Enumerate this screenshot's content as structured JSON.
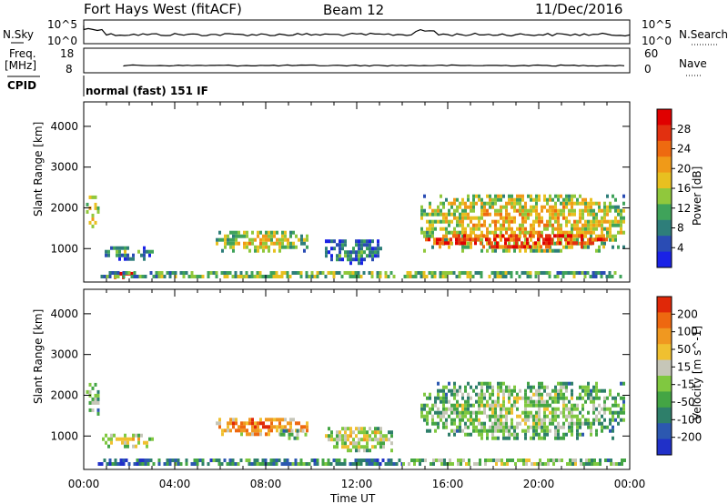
{
  "header": {
    "station": "Fort Hays West (fitACF)",
    "beam": "Beam 12",
    "date": "11/Dec/2016"
  },
  "top_panels": {
    "nsky_label": "N.Sky",
    "nsearch_label": "N.Search",
    "noise_ticks": [
      "10^5",
      "10^0"
    ],
    "freq_label_line1": "Freq.",
    "freq_label_line2": "[MHz]",
    "freq_ticks": [
      "18",
      "8"
    ],
    "nave_label": "Nave",
    "nave_ticks": [
      "60",
      "0"
    ],
    "cpid_label": "CPID",
    "cpid_text": "normal (fast) 151 IF"
  },
  "colors": {
    "power_scale": [
      "#1a22e6",
      "#2a4cb4",
      "#2e7e7a",
      "#3fa35a",
      "#90c83c",
      "#e8c020",
      "#f09a18",
      "#ee6a10",
      "#e23010",
      "#e00000"
    ],
    "velocity_scale": [
      "#2030c8",
      "#2c58b0",
      "#2e7f6a",
      "#44a544",
      "#80c840",
      "#c6c6b8",
      "#f0c030",
      "#f09820",
      "#ee6810",
      "#e02808"
    ]
  },
  "chart_data": [
    {
      "type": "heatmap",
      "name": "power-panel",
      "ylabel": "Slant Range [km]",
      "y_ticks": [
        "4000",
        "3000",
        "2000",
        "1000"
      ],
      "ylim": [
        180,
        4600
      ],
      "x_ticks": [
        "00:00",
        "04:00",
        "08:00",
        "12:00",
        "16:00",
        "20:00",
        "00:00"
      ],
      "xlim_hours": [
        0,
        24
      ],
      "colorbar_label": "Power [dB]",
      "colorbar_ticks": [
        "28",
        "24",
        "20",
        "16",
        "12",
        "8",
        "4"
      ],
      "colorbar_range": [
        0,
        30
      ],
      "regions": [
        {
          "t": [
            0.1,
            0.6
          ],
          "r": [
            1500,
            2300
          ],
          "level": 0.55
        },
        {
          "t": [
            0.8,
            3.0
          ],
          "r": [
            700,
            1000
          ],
          "level": 0.35
        },
        {
          "t": [
            1.2,
            2.2
          ],
          "r": [
            250,
            400
          ],
          "level": 0.9
        },
        {
          "t": [
            5.8,
            9.8
          ],
          "r": [
            900,
            1400
          ],
          "level": 0.55
        },
        {
          "t": [
            10.6,
            13.0
          ],
          "r": [
            600,
            1200
          ],
          "level": 0.3
        },
        {
          "t": [
            14.8,
            23.8
          ],
          "r": [
            900,
            2300
          ],
          "level": 0.6
        },
        {
          "t": [
            15.0,
            23.0
          ],
          "r": [
            1000,
            1300
          ],
          "level": 0.95
        },
        {
          "t": [
            0.5,
            24.0
          ],
          "r": [
            180,
            420
          ],
          "level": 0.45
        }
      ]
    },
    {
      "type": "heatmap",
      "name": "velocity-panel",
      "ylabel": "Slant Range [km]",
      "y_ticks": [
        "4000",
        "3000",
        "2000",
        "1000"
      ],
      "ylim": [
        180,
        4600
      ],
      "x_ticks": [
        "00:00",
        "04:00",
        "08:00",
        "12:00",
        "16:00",
        "20:00",
        "00:00"
      ],
      "xlim_hours": [
        0,
        24
      ],
      "xlabel": "Time UT",
      "colorbar_label": "Velocity [m s^-1]",
      "colorbar_ticks": [
        "200",
        "100",
        "50",
        "15",
        "-15",
        "-50",
        "-100",
        "-200"
      ],
      "colorbar_range": [
        -250,
        250
      ],
      "regions": [
        {
          "t": [
            0.1,
            0.6
          ],
          "r": [
            1500,
            2300
          ],
          "level": 0.5
        },
        {
          "t": [
            0.8,
            3.0
          ],
          "r": [
            700,
            1000
          ],
          "level": 0.65
        },
        {
          "t": [
            5.8,
            9.8
          ],
          "r": [
            1000,
            1400
          ],
          "level": 0.85
        },
        {
          "t": [
            8.5,
            9.8
          ],
          "r": [
            900,
            1100
          ],
          "level": 0.5
        },
        {
          "t": [
            10.6,
            13.5
          ],
          "r": [
            600,
            1200
          ],
          "level": 0.6
        },
        {
          "t": [
            14.8,
            23.8
          ],
          "r": [
            900,
            2300
          ],
          "level": 0.5
        },
        {
          "t": [
            0.5,
            14.0
          ],
          "r": [
            180,
            420
          ],
          "level": 0.3
        },
        {
          "t": [
            14.0,
            24.0
          ],
          "r": [
            180,
            420
          ],
          "level": 0.5
        }
      ]
    }
  ]
}
